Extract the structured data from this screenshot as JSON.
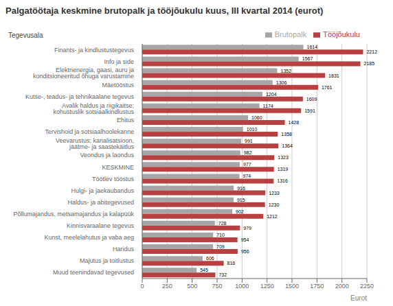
{
  "chart_data": {
    "type": "bar",
    "orientation": "horizontal",
    "title": "Palgatöötaja keskmine brutopalk ja tööjõukulu kuus, III kvartal 2014 (eurot)",
    "xlabel": "Eurot",
    "ylabel": "Tegevusala",
    "categories": [
      "Finants- ja kindlustustegevus",
      "Info ja side",
      "Elektrienergia, gaasi, auru ja\nkonditsioneeritud õhuga varustamine",
      "Mäetööstus",
      "Kutse-, teadus- ja tehnikaalane tegevus",
      "Avalik haldus ja riigikaitse;\nkohustuslik sotsiaalkindlustus",
      "Ehitus",
      "Tervishoid ja sotsiaalhoolekanne",
      "Veevarustus; kanalisatsioon,\njäätme- ja saastekäitlus",
      "Veondus ja laondus",
      "KESKMINE",
      "Töötlev tööstus",
      "Hulgi- ja jaekaubandus",
      "Haldus- ja abitegevused",
      "Põllumajandus, metsamajandus ja kalapüük",
      "Kinnisvaraalane tegevus",
      "Kunst, meelelahutus ja vaba aeg",
      "Haridus",
      "Majutus ja toitlustus",
      "Muud teenindavad tegevused"
    ],
    "series": [
      {
        "name": "Brutopalk",
        "color": "#a6a6a6",
        "values": [
          1614,
          1567,
          1352,
          1306,
          1204,
          1174,
          1060,
          1010,
          991,
          982,
          977,
          974,
          916,
          915,
          902,
          728,
          710,
          709,
          606,
          545
        ]
      },
      {
        "name": "Tööjõukulu",
        "color": "#b94040",
        "values": [
          2212,
          2185,
          1831,
          1761,
          1609,
          1591,
          1428,
          1358,
          1364,
          1323,
          1319,
          1316,
          1233,
          1230,
          1212,
          979,
          954,
          956,
          816,
          732
        ]
      }
    ],
    "xlim": [
      0,
      2250
    ],
    "xticks": [
      0,
      250,
      500,
      750,
      1000,
      1250,
      1500,
      1750,
      2000,
      2250
    ],
    "data_labels": true,
    "grid": true,
    "legend": "upper right"
  }
}
